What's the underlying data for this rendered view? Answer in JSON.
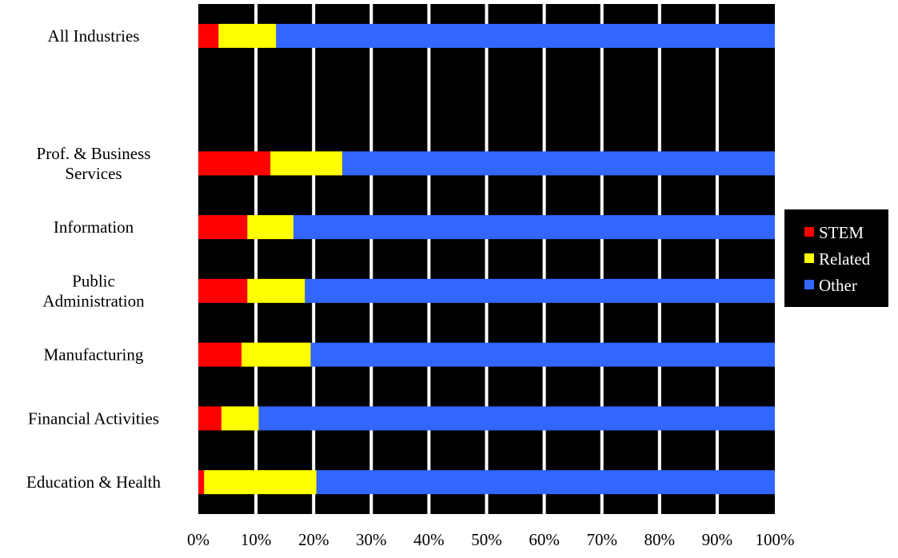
{
  "chart_data": {
    "type": "bar",
    "orientation": "horizontal",
    "stacked": true,
    "normalized": true,
    "title": "",
    "xlabel": "",
    "ylabel": "",
    "xlim": [
      0,
      100
    ],
    "grid": true,
    "legend_position": "right",
    "plot_background": "#000000",
    "grid_color": "#ffffff",
    "categories": [
      [
        "All Industries"
      ],
      [
        "Prof. & Business",
        "Services"
      ],
      [
        "Information"
      ],
      [
        "Public",
        "Administration"
      ],
      [
        "Manufacturing"
      ],
      [
        "Financial Activities"
      ],
      [
        "Education & Health"
      ]
    ],
    "category_slots": [
      0,
      2,
      3,
      4,
      5,
      6,
      7
    ],
    "slot_count": 8,
    "series": [
      {
        "name": "STEM",
        "color": "#ff0000",
        "values": [
          3.5,
          12.5,
          8.5,
          8.5,
          7.5,
          4,
          1
        ]
      },
      {
        "name": "Related",
        "color": "#ffff00",
        "values": [
          10,
          12.5,
          8,
          10,
          12,
          6.5,
          19.5
        ]
      },
      {
        "name": "Other",
        "color": "#3366ff",
        "values": [
          86.5,
          75,
          83.5,
          81.5,
          80.5,
          89.5,
          79.5
        ]
      }
    ],
    "x_ticks": [
      "0%",
      "10%",
      "20%",
      "30%",
      "40%",
      "50%",
      "60%",
      "70%",
      "80%",
      "90%",
      "100%"
    ],
    "legend": {
      "background": "#000000",
      "text_color": "#ffffff"
    }
  }
}
